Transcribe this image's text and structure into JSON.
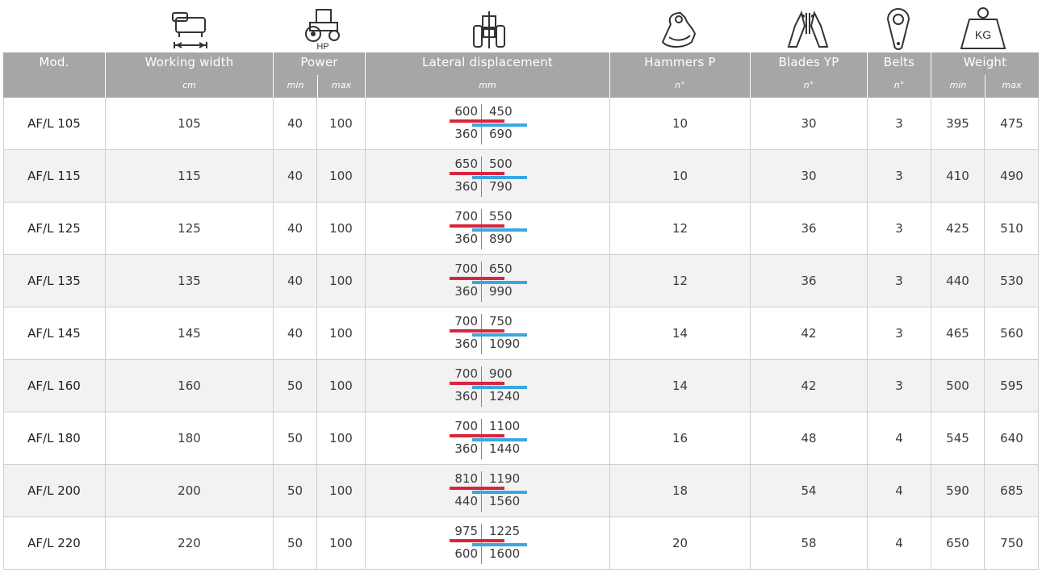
{
  "icons": {
    "working_width": "mower-width-icon",
    "power": "tractor-hp-icon",
    "power_label": "HP",
    "lateral": "tractor-rear-icon",
    "hammers": "hammer-icon",
    "blades": "blades-icon",
    "belts": "belt-icon",
    "weight": "weight-icon",
    "weight_label": "KG"
  },
  "header": {
    "mod": "Mod.",
    "working_width": "Working width",
    "working_width_unit": "cm",
    "power": "Power",
    "power_min": "min",
    "power_max": "max",
    "lateral": "Lateral displacement",
    "lateral_unit": "mm",
    "hammers": "Hammers P",
    "hammers_unit": "n°",
    "blades": "Blades YP",
    "blades_unit": "n°",
    "belts": "Belts",
    "belts_unit": "n°",
    "weight": "Weight",
    "weight_min": "min",
    "weight_max": "max"
  },
  "colors": {
    "header_bg": "#a6a6a6",
    "red_bar": "#d7263d",
    "blue_bar": "#3aa7de",
    "alt_row": "#f2f2f2"
  },
  "rows": [
    {
      "mod": "AF/L 105",
      "width": "105",
      "pmin": "40",
      "pmax": "100",
      "lat_tl": "600",
      "lat_tr": "450",
      "lat_bl": "360",
      "lat_br": "690",
      "hammers": "10",
      "blades": "30",
      "belts": "3",
      "wmin": "395",
      "wmax": "475"
    },
    {
      "mod": "AF/L 115",
      "width": "115",
      "pmin": "40",
      "pmax": "100",
      "lat_tl": "650",
      "lat_tr": "500",
      "lat_bl": "360",
      "lat_br": "790",
      "hammers": "10",
      "blades": "30",
      "belts": "3",
      "wmin": "410",
      "wmax": "490"
    },
    {
      "mod": "AF/L 125",
      "width": "125",
      "pmin": "40",
      "pmax": "100",
      "lat_tl": "700",
      "lat_tr": "550",
      "lat_bl": "360",
      "lat_br": "890",
      "hammers": "12",
      "blades": "36",
      "belts": "3",
      "wmin": "425",
      "wmax": "510"
    },
    {
      "mod": "AF/L 135",
      "width": "135",
      "pmin": "40",
      "pmax": "100",
      "lat_tl": "700",
      "lat_tr": "650",
      "lat_bl": "360",
      "lat_br": "990",
      "hammers": "12",
      "blades": "36",
      "belts": "3",
      "wmin": "440",
      "wmax": "530"
    },
    {
      "mod": "AF/L 145",
      "width": "145",
      "pmin": "40",
      "pmax": "100",
      "lat_tl": "700",
      "lat_tr": "750",
      "lat_bl": "360",
      "lat_br": "1090",
      "hammers": "14",
      "blades": "42",
      "belts": "3",
      "wmin": "465",
      "wmax": "560"
    },
    {
      "mod": "AF/L 160",
      "width": "160",
      "pmin": "50",
      "pmax": "100",
      "lat_tl": "700",
      "lat_tr": "900",
      "lat_bl": "360",
      "lat_br": "1240",
      "hammers": "14",
      "blades": "42",
      "belts": "3",
      "wmin": "500",
      "wmax": "595"
    },
    {
      "mod": "AF/L 180",
      "width": "180",
      "pmin": "50",
      "pmax": "100",
      "lat_tl": "700",
      "lat_tr": "1100",
      "lat_bl": "360",
      "lat_br": "1440",
      "hammers": "16",
      "blades": "48",
      "belts": "4",
      "wmin": "545",
      "wmax": "640"
    },
    {
      "mod": "AF/L 200",
      "width": "200",
      "pmin": "50",
      "pmax": "100",
      "lat_tl": "810",
      "lat_tr": "1190",
      "lat_bl": "440",
      "lat_br": "1560",
      "hammers": "18",
      "blades": "54",
      "belts": "4",
      "wmin": "590",
      "wmax": "685"
    },
    {
      "mod": "AF/L 220",
      "width": "220",
      "pmin": "50",
      "pmax": "100",
      "lat_tl": "975",
      "lat_tr": "1225",
      "lat_bl": "600",
      "lat_br": "1600",
      "hammers": "20",
      "blades": "58",
      "belts": "4",
      "wmin": "650",
      "wmax": "750"
    }
  ]
}
